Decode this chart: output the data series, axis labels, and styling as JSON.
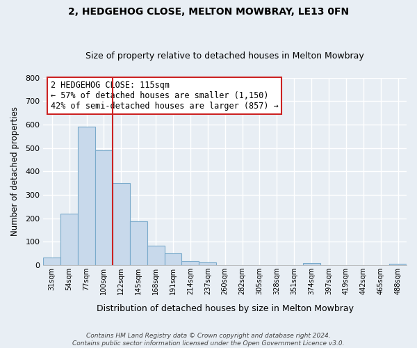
{
  "title": "2, HEDGEHOG CLOSE, MELTON MOWBRAY, LE13 0FN",
  "subtitle": "Size of property relative to detached houses in Melton Mowbray",
  "xlabel": "Distribution of detached houses by size in Melton Mowbray",
  "ylabel": "Number of detached properties",
  "bin_labels": [
    "31sqm",
    "54sqm",
    "77sqm",
    "100sqm",
    "122sqm",
    "145sqm",
    "168sqm",
    "191sqm",
    "214sqm",
    "237sqm",
    "260sqm",
    "282sqm",
    "305sqm",
    "328sqm",
    "351sqm",
    "374sqm",
    "397sqm",
    "419sqm",
    "442sqm",
    "465sqm",
    "488sqm"
  ],
  "bar_heights": [
    33,
    220,
    590,
    490,
    350,
    188,
    83,
    50,
    18,
    13,
    0,
    0,
    0,
    0,
    0,
    8,
    0,
    0,
    0,
    0,
    5
  ],
  "bar_fill_color": "#c8d9eb",
  "bar_edge_color": "#7aaacb",
  "vline_x_index": 3.5,
  "vline_color": "#cc2222",
  "ylim": [
    0,
    800
  ],
  "yticks": [
    0,
    100,
    200,
    300,
    400,
    500,
    600,
    700,
    800
  ],
  "annotation_title": "2 HEDGEHOG CLOSE: 115sqm",
  "annotation_line1": "← 57% of detached houses are smaller (1,150)",
  "annotation_line2": "42% of semi-detached houses are larger (857) →",
  "annotation_box_facecolor": "#ffffff",
  "annotation_box_edgecolor": "#cc2222",
  "footer_line1": "Contains HM Land Registry data © Crown copyright and database right 2024.",
  "footer_line2": "Contains public sector information licensed under the Open Government Licence v3.0.",
  "bg_color": "#e8eef4",
  "plot_bg_color": "#e8eef4",
  "grid_color": "#ffffff",
  "title_fontsize": 10,
  "subtitle_fontsize": 9,
  "ylabel_text": "Number of detached properties"
}
